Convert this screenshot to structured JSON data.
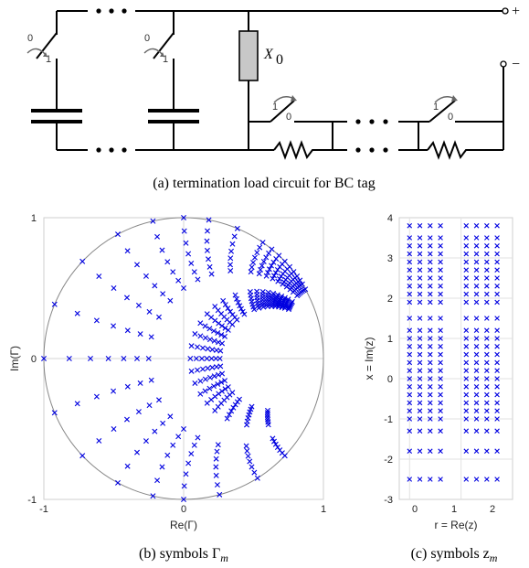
{
  "circuit": {
    "caption": "(a) termination load circuit for BC tag",
    "load_label_main": "X",
    "load_label_sub": "0",
    "plus_label": "+",
    "minus_label": "−",
    "switch_states": [
      "0",
      "1"
    ]
  },
  "chart_data": [
    {
      "type": "scatter",
      "caption_main": "(b) symbols Γ",
      "caption_sub": "m",
      "xlabel": "Re(Γ)",
      "ylabel": "Im(Γ)",
      "xlim": [
        -1,
        1
      ],
      "ylim": [
        -1,
        1
      ],
      "xticks": [
        "-1",
        "0",
        "1"
      ],
      "yticks": [
        "1",
        "0",
        "-1"
      ],
      "grid": "axes lines through origin",
      "unit_circle": true,
      "marker": "x",
      "color": "#0000e0",
      "resistance_values": [
        0,
        0.1,
        0.2,
        0.3,
        0.4,
        0.5,
        0.6,
        1.1,
        1.2,
        1.3,
        1.4,
        1.5,
        1.6,
        1.7
      ],
      "reactance_values": [
        -2.5,
        -1.8,
        -1.3,
        -1.0,
        -0.8,
        -0.6,
        -0.4,
        -0.2,
        0.0,
        0.2,
        0.4,
        0.6,
        0.8,
        1.0,
        1.2,
        1.5,
        1.9,
        2.1,
        2.3,
        2.5,
        2.7,
        2.9,
        3.1,
        3.3,
        3.5,
        3.8
      ]
    },
    {
      "type": "scatter",
      "caption_main": "(c) symbols z",
      "caption_sub": "m",
      "xlabel": "r = Re(z)",
      "ylabel": "x = Im(z)",
      "xlim": [
        -0.2,
        2
      ],
      "ylim": [
        -3,
        4
      ],
      "xticks": [
        "0",
        "1",
        "2"
      ],
      "yticks": [
        "4",
        "3",
        "2",
        "1",
        "0",
        "-1",
        "-2",
        "-3"
      ],
      "marker": "x",
      "color": "#0000e0",
      "resistance_values": [
        0,
        0.2,
        0.4,
        0.6,
        1.1,
        1.3,
        1.5,
        1.7
      ],
      "reactance_values": [
        -2.5,
        -1.8,
        -1.3,
        -1.0,
        -0.8,
        -0.6,
        -0.4,
        -0.2,
        0.0,
        0.2,
        0.4,
        0.6,
        0.8,
        1.0,
        1.2,
        1.5,
        1.9,
        2.1,
        2.3,
        2.5,
        2.7,
        2.9,
        3.1,
        3.3,
        3.5,
        3.8
      ]
    }
  ]
}
